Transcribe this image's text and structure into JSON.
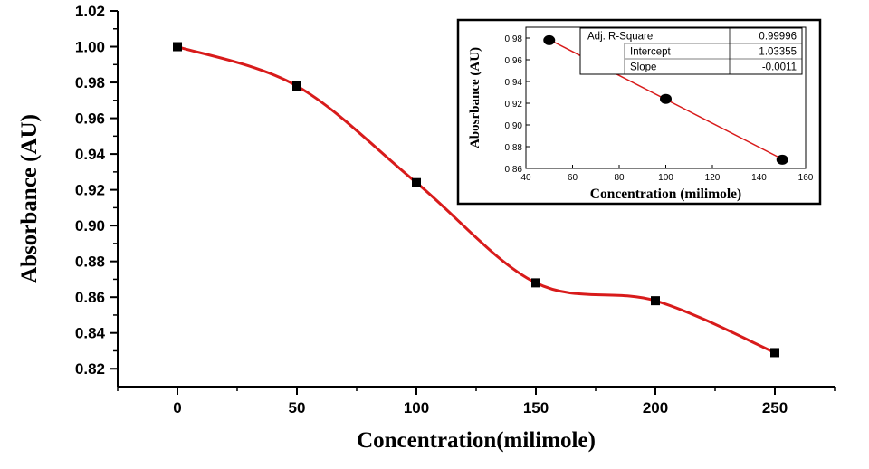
{
  "chart_data": [
    {
      "type": "line",
      "xlabel": "Concentration(milimole)",
      "ylabel": "Absorbance (AU)",
      "xlim": [
        -25,
        275
      ],
      "ylim": [
        0.81,
        1.02
      ],
      "x_ticks": [
        0,
        50,
        100,
        150,
        200,
        250
      ],
      "y_ticks": [
        0.82,
        0.84,
        0.86,
        0.88,
        0.9,
        0.92,
        0.94,
        0.96,
        0.98,
        1.0,
        1.02
      ],
      "x_tick_labels": [
        "0",
        "50",
        "100",
        "150",
        "200",
        "250"
      ],
      "y_tick_labels": [
        "0.82",
        "0.84",
        "0.86",
        "0.88",
        "0.90",
        "0.92",
        "0.94",
        "0.96",
        "0.98",
        "1.00",
        "1.02"
      ],
      "series": [
        {
          "x": [
            0,
            50,
            100,
            150,
            200,
            250
          ],
          "y": [
            1.0,
            0.978,
            0.924,
            0.868,
            0.858,
            0.829
          ],
          "marker": "square",
          "line": "smooth spline",
          "color": "#d81b1b",
          "marker_color": "#000000"
        }
      ],
      "grid": false
    },
    {
      "type": "scatter",
      "xlabel": "Concentration (milimole)",
      "ylabel": "Abosrbance (AU)",
      "xlim": [
        40,
        160
      ],
      "ylim": [
        0.86,
        0.99
      ],
      "x_ticks": [
        40,
        60,
        80,
        100,
        120,
        140,
        160
      ],
      "y_ticks": [
        0.86,
        0.88,
        0.9,
        0.92,
        0.94,
        0.96,
        0.98
      ],
      "x_tick_labels": [
        "40",
        "60",
        "80",
        "100",
        "120",
        "140",
        "160"
      ],
      "y_tick_labels": [
        "0.86",
        "0.88",
        "0.90",
        "0.92",
        "0.94",
        "0.96",
        "0.98"
      ],
      "series": [
        {
          "x": [
            50,
            100,
            150
          ],
          "y": [
            0.978,
            0.924,
            0.868
          ],
          "marker": "circle",
          "fit_line": {
            "slope": -0.0011,
            "intercept": 1.03355
          },
          "color": "#d81b1b",
          "marker_color": "#000000"
        }
      ],
      "fit_table": {
        "rows": [
          {
            "label": "Adj. R-Square",
            "value": "0.99996"
          },
          {
            "label": "Intercept",
            "value": "1.03355"
          },
          {
            "label": "Slope",
            "value": "-0.0011"
          }
        ]
      },
      "grid": false
    }
  ]
}
